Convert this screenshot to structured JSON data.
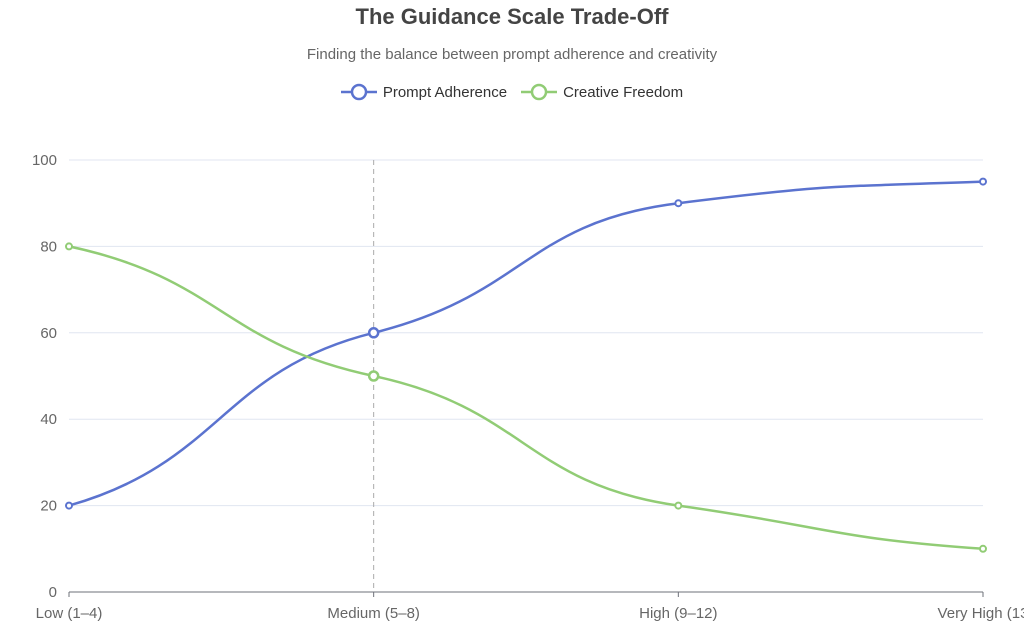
{
  "chart_data": {
    "type": "line",
    "title": "The Guidance Scale Trade-Off",
    "subtitle": "Finding the balance between prompt adherence and creativity",
    "categories": [
      "Low (1–4)",
      "Medium (5–8)",
      "High (9–12)",
      "Very High (13"
    ],
    "series": [
      {
        "name": "Prompt Adherence",
        "color": "#5b73cf",
        "values": [
          20,
          60,
          90,
          95
        ]
      },
      {
        "name": "Creative Freedom",
        "color": "#91cc75",
        "values": [
          80,
          50,
          20,
          10
        ]
      }
    ],
    "ylim": [
      0,
      100
    ],
    "yticks": [
      0,
      20,
      40,
      60,
      80,
      100
    ],
    "grid": true,
    "smooth": true,
    "legend_position": "top-center",
    "highlighted_category": "Medium (5–8)"
  }
}
